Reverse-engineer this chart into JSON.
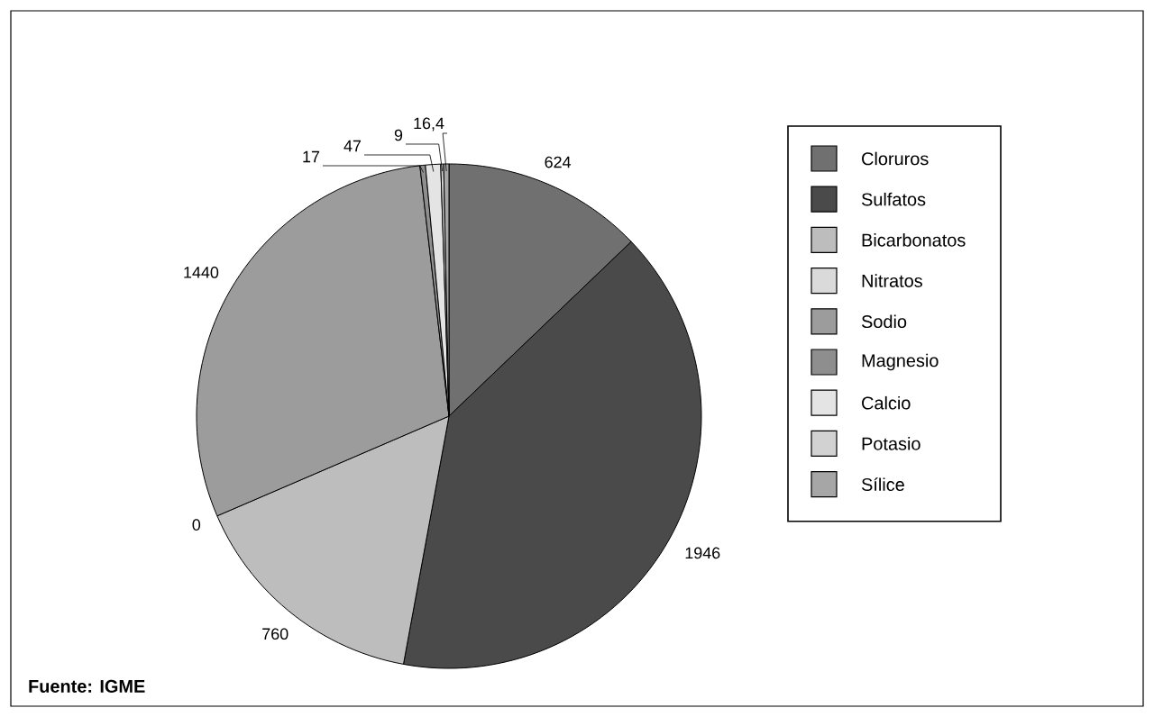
{
  "chart_data": {
    "type": "pie",
    "categories": [
      "Cloruros",
      "Sulfatos",
      "Bicarbonatos",
      "Nitratos",
      "Sodio",
      "Magnesio",
      "Calcio",
      "Potasio",
      "Sílice"
    ],
    "values": [
      624,
      1946,
      760,
      0,
      1440,
      17,
      47,
      9,
      16.4
    ],
    "value_labels": [
      "624",
      "1946",
      "760",
      "0",
      "1440",
      "17",
      "47",
      "9",
      "16,4"
    ],
    "colors": [
      "#707070",
      "#4a4a4a",
      "#bdbdbd",
      "#dadada",
      "#9c9c9c",
      "#8e8e8e",
      "#e4e4e4",
      "#d2d2d2",
      "#a6a6a6"
    ],
    "legend": "right",
    "annotations": [
      "Fuente: IGME"
    ]
  }
}
